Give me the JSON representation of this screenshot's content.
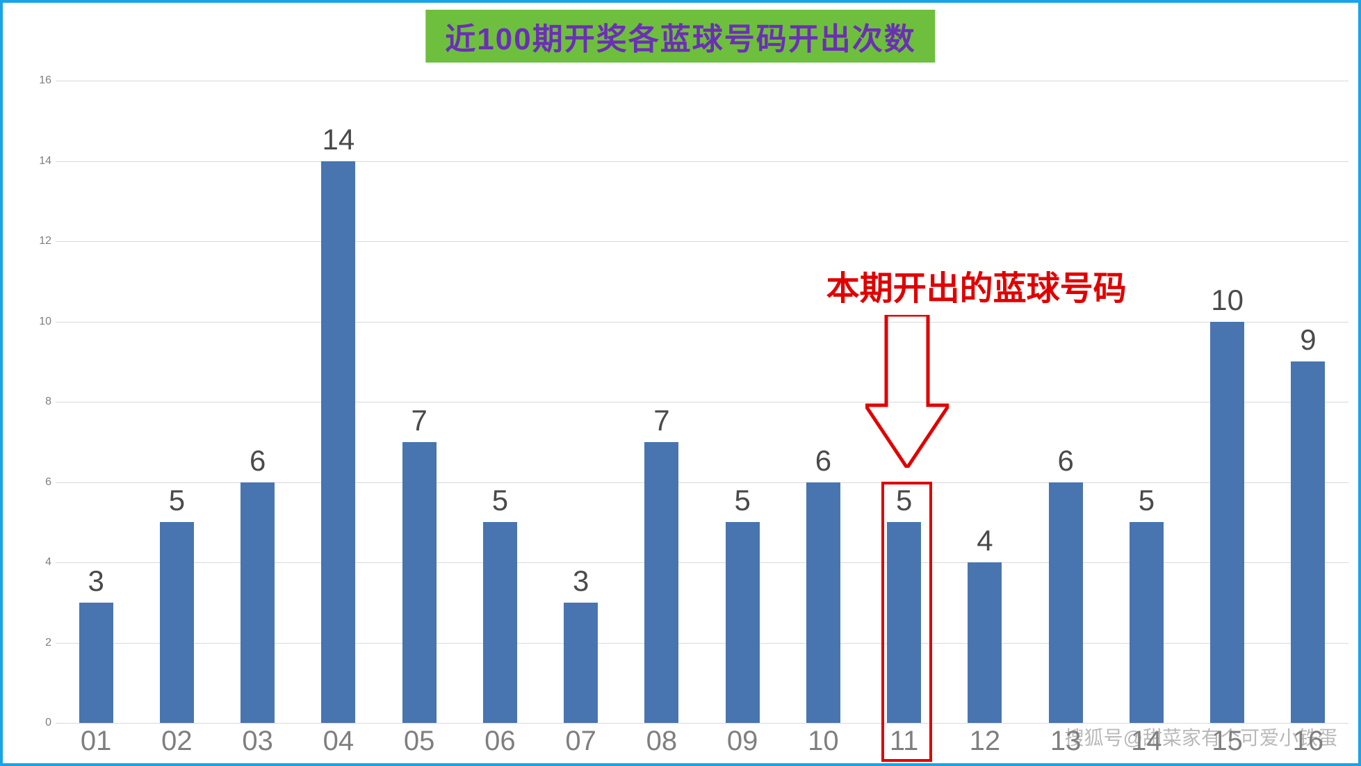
{
  "frame": {
    "border_color": "#1aa3e8"
  },
  "title": {
    "text": "近100期开奖各蓝球号码开出次数",
    "background": "#6fbf3e",
    "color": "#6b2fb5",
    "fontsize": 44
  },
  "chart": {
    "type": "bar",
    "categories": [
      "01",
      "02",
      "03",
      "04",
      "05",
      "06",
      "07",
      "08",
      "09",
      "10",
      "11",
      "12",
      "13",
      "14",
      "15",
      "16"
    ],
    "values": [
      3,
      5,
      6,
      14,
      7,
      5,
      3,
      7,
      5,
      6,
      5,
      4,
      6,
      5,
      10,
      9
    ],
    "bar_color": "#4875b0",
    "bar_width_pct": 42,
    "value_label_color": "#4a4a4a",
    "value_label_fontsize": 42,
    "xlabel_color": "#7f7f7f",
    "xlabel_fontsize": 40,
    "ylim": [
      0,
      16
    ],
    "ytick_step": 2,
    "ytick_color": "#7f7f7f",
    "grid_color": "#d9d9d9",
    "background_color": "#ffffff"
  },
  "annotation": {
    "text": "本期开出的蓝球号码",
    "color": "#e00000",
    "fontsize": 48,
    "highlight_index": 10,
    "arrow_color": "#e00000",
    "box_color": "#e00000"
  },
  "watermark": {
    "text": "搜狐号@甜菜家有个可爱小铁蛋",
    "color": "rgba(128,128,128,0.55)"
  }
}
